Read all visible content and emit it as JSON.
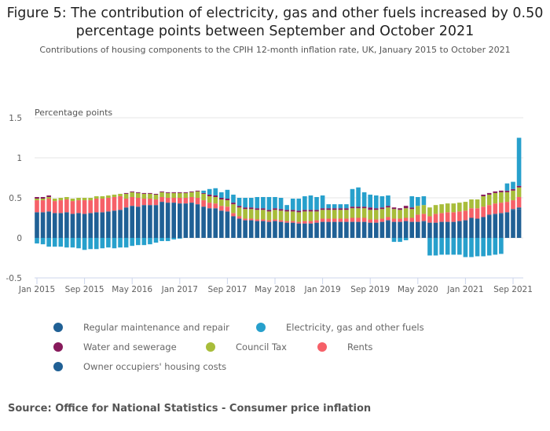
{
  "title": "Figure 5: The contribution of electricity, gas and other fuels increased by 0.50 percentage points between September and October 2021",
  "subtitle": "Contributions of housing components to the CPIH 12-month inflation rate, UK, January 2015 to October 2021",
  "source": "Source: Office for National Statistics - Consumer price inflation",
  "chart_data": {
    "type": "bar",
    "stacked": true,
    "title": "Figure 5: The contribution of electricity, gas and other fuels increased by 0.50 percentage points between September and October 2021",
    "subtitle": "Contributions of housing components to the CPIH 12-month inflation rate, UK, January 2015 to October 2021",
    "xlabel": "",
    "ylabel": "Percentage points",
    "ylim": [
      -0.5,
      1.5
    ],
    "yticks": [
      -0.5,
      0,
      0.5,
      1,
      1.5
    ],
    "ytick_labels": [
      "-0.5",
      "0",
      "0.5",
      "1",
      "1.5"
    ],
    "xtick_labels": [
      "Jan 2015",
      "Sep 2015",
      "May 2016",
      "Jan 2017",
      "Sep 2017",
      "May 2018",
      "Jan 2019",
      "Sep 2019",
      "May 2020",
      "Jan 2021",
      "Sep 2021"
    ],
    "xtick_indices": [
      0,
      8,
      16,
      24,
      32,
      40,
      48,
      56,
      64,
      72,
      80
    ],
    "grid": true,
    "legend_position": "bottom",
    "categories": [
      "Jan 2015",
      "Feb 2015",
      "Mar 2015",
      "Apr 2015",
      "May 2015",
      "Jun 2015",
      "Jul 2015",
      "Aug 2015",
      "Sep 2015",
      "Oct 2015",
      "Nov 2015",
      "Dec 2015",
      "Jan 2016",
      "Feb 2016",
      "Mar 2016",
      "Apr 2016",
      "May 2016",
      "Jun 2016",
      "Jul 2016",
      "Aug 2016",
      "Sep 2016",
      "Oct 2016",
      "Nov 2016",
      "Dec 2016",
      "Jan 2017",
      "Feb 2017",
      "Mar 2017",
      "Apr 2017",
      "May 2017",
      "Jun 2017",
      "Jul 2017",
      "Aug 2017",
      "Sep 2017",
      "Oct 2017",
      "Nov 2017",
      "Dec 2017",
      "Jan 2018",
      "Feb 2018",
      "Mar 2018",
      "Apr 2018",
      "May 2018",
      "Jun 2018",
      "Jul 2018",
      "Aug 2018",
      "Sep 2018",
      "Oct 2018",
      "Nov 2018",
      "Dec 2018",
      "Jan 2019",
      "Feb 2019",
      "Mar 2019",
      "Apr 2019",
      "May 2019",
      "Jun 2019",
      "Jul 2019",
      "Aug 2019",
      "Sep 2019",
      "Oct 2019",
      "Nov 2019",
      "Dec 2019",
      "Jan 2020",
      "Feb 2020",
      "Mar 2020",
      "Apr 2020",
      "May 2020",
      "Jun 2020",
      "Jul 2020",
      "Aug 2020",
      "Sep 2020",
      "Oct 2020",
      "Nov 2020",
      "Dec 2020",
      "Jan 2021",
      "Feb 2021",
      "Mar 2021",
      "Apr 2021",
      "May 2021",
      "Jun 2021",
      "Jul 2021",
      "Aug 2021",
      "Sep 2021",
      "Oct 2021"
    ],
    "series": [
      {
        "name": "Owner occupiers' housing costs",
        "color": "#206095",
        "values": [
          0.32,
          0.32,
          0.33,
          0.31,
          0.31,
          0.32,
          0.3,
          0.31,
          0.3,
          0.31,
          0.32,
          0.32,
          0.33,
          0.34,
          0.35,
          0.38,
          0.4,
          0.39,
          0.41,
          0.41,
          0.41,
          0.45,
          0.44,
          0.44,
          0.43,
          0.43,
          0.44,
          0.42,
          0.39,
          0.37,
          0.37,
          0.34,
          0.33,
          0.27,
          0.24,
          0.22,
          0.22,
          0.21,
          0.21,
          0.2,
          0.21,
          0.2,
          0.19,
          0.19,
          0.18,
          0.18,
          0.18,
          0.19,
          0.2,
          0.2,
          0.2,
          0.2,
          0.2,
          0.2,
          0.2,
          0.2,
          0.19,
          0.19,
          0.2,
          0.21,
          0.2,
          0.2,
          0.21,
          0.2,
          0.2,
          0.2,
          0.19,
          0.19,
          0.2,
          0.2,
          0.2,
          0.21,
          0.22,
          0.25,
          0.24,
          0.26,
          0.28,
          0.29,
          0.3,
          0.32,
          0.35,
          0.36
        ]
      },
      {
        "name": "Regular maintenance and repair",
        "color": "#1f5f94",
        "values": [
          0.0,
          0.0,
          0.0,
          0.0,
          0.0,
          0.0,
          0.0,
          0.0,
          0.0,
          0.0,
          0.0,
          0.0,
          0.0,
          0.0,
          0.0,
          0.0,
          0.0,
          0.0,
          0.0,
          0.0,
          0.0,
          0.0,
          0.0,
          0.0,
          0.0,
          0.0,
          0.0,
          0.0,
          0.0,
          0.0,
          0.0,
          0.0,
          0.0,
          0.0,
          0.0,
          0.0,
          0.0,
          0.0,
          0.0,
          0.0,
          0.0,
          0.0,
          0.0,
          0.0,
          0.0,
          0.0,
          0.0,
          0.0,
          0.0,
          0.0,
          0.0,
          0.0,
          0.0,
          0.0,
          0.0,
          0.0,
          0.0,
          0.0,
          0.0,
          0.01,
          0.0,
          0.0,
          0.0,
          0.0,
          0.0,
          0.01,
          0.0,
          0.0,
          0.0,
          0.0,
          0.0,
          0.0,
          0.0,
          0.0,
          0.0,
          0.0,
          0.01,
          0.01,
          0.01,
          0.0,
          0.01,
          0.02
        ]
      },
      {
        "name": "Rents",
        "color": "#f66068",
        "values": [
          0.15,
          0.15,
          0.16,
          0.15,
          0.16,
          0.16,
          0.16,
          0.16,
          0.17,
          0.16,
          0.17,
          0.17,
          0.17,
          0.17,
          0.17,
          0.11,
          0.11,
          0.11,
          0.08,
          0.08,
          0.07,
          0.06,
          0.06,
          0.06,
          0.07,
          0.07,
          0.07,
          0.08,
          0.08,
          0.07,
          0.06,
          0.06,
          0.06,
          0.04,
          0.03,
          0.02,
          0.02,
          0.02,
          0.02,
          0.02,
          0.02,
          0.02,
          0.02,
          0.02,
          0.02,
          0.03,
          0.03,
          0.03,
          0.04,
          0.04,
          0.04,
          0.04,
          0.04,
          0.05,
          0.05,
          0.05,
          0.04,
          0.04,
          0.04,
          0.04,
          0.04,
          0.04,
          0.04,
          0.05,
          0.09,
          0.09,
          0.08,
          0.11,
          0.11,
          0.12,
          0.12,
          0.12,
          0.12,
          0.12,
          0.13,
          0.13,
          0.12,
          0.13,
          0.13,
          0.13,
          0.11,
          0.13
        ]
      },
      {
        "name": "Council Tax",
        "color": "#a8bd3a",
        "values": [
          0.02,
          0.02,
          0.02,
          0.03,
          0.03,
          0.03,
          0.03,
          0.03,
          0.03,
          0.03,
          0.03,
          0.03,
          0.03,
          0.03,
          0.03,
          0.06,
          0.06,
          0.06,
          0.06,
          0.06,
          0.06,
          0.06,
          0.06,
          0.06,
          0.06,
          0.06,
          0.06,
          0.08,
          0.08,
          0.08,
          0.08,
          0.08,
          0.08,
          0.11,
          0.11,
          0.12,
          0.12,
          0.12,
          0.12,
          0.11,
          0.12,
          0.12,
          0.12,
          0.12,
          0.12,
          0.12,
          0.12,
          0.11,
          0.11,
          0.11,
          0.11,
          0.11,
          0.11,
          0.12,
          0.12,
          0.12,
          0.12,
          0.12,
          0.12,
          0.12,
          0.12,
          0.11,
          0.12,
          0.11,
          0.11,
          0.11,
          0.11,
          0.11,
          0.11,
          0.11,
          0.11,
          0.11,
          0.11,
          0.11,
          0.11,
          0.13,
          0.13,
          0.13,
          0.13,
          0.12,
          0.12,
          0.12
        ]
      },
      {
        "name": "Water and sewerage",
        "color": "#871a5b",
        "values": [
          0.02,
          0.02,
          0.02,
          0.0,
          0.0,
          0.0,
          0.0,
          0.0,
          0.0,
          0.0,
          0.0,
          0.0,
          0.0,
          0.0,
          0.0,
          0.01,
          0.01,
          0.01,
          0.01,
          0.01,
          0.01,
          0.01,
          0.01,
          0.01,
          0.01,
          0.01,
          0.01,
          0.01,
          0.01,
          0.02,
          0.02,
          0.02,
          0.02,
          0.02,
          0.02,
          0.02,
          0.02,
          0.02,
          0.02,
          0.02,
          0.02,
          0.02,
          0.02,
          0.02,
          0.02,
          0.02,
          0.02,
          0.02,
          0.02,
          0.02,
          0.02,
          0.02,
          0.02,
          0.02,
          0.02,
          0.02,
          0.03,
          0.02,
          0.02,
          0.02,
          0.02,
          0.02,
          0.03,
          0.02,
          0.0,
          0.0,
          0.0,
          0.0,
          0.0,
          0.0,
          0.0,
          0.0,
          0.0,
          0.0,
          0.0,
          0.02,
          0.02,
          0.02,
          0.02,
          0.02,
          0.02,
          0.02
        ]
      },
      {
        "name": "Electricity, gas and other fuels",
        "color": "#27a0cc",
        "values": [
          -0.07,
          -0.08,
          -0.11,
          -0.11,
          -0.11,
          -0.12,
          -0.12,
          -0.13,
          -0.15,
          -0.14,
          -0.14,
          -0.13,
          -0.12,
          -0.13,
          -0.12,
          -0.12,
          -0.1,
          -0.09,
          -0.09,
          -0.08,
          -0.06,
          -0.04,
          -0.04,
          -0.02,
          -0.01,
          0.0,
          0.0,
          0.0,
          0.03,
          0.07,
          0.09,
          0.07,
          0.11,
          0.1,
          0.1,
          0.12,
          0.12,
          0.14,
          0.14,
          0.16,
          0.14,
          0.14,
          0.06,
          0.14,
          0.15,
          0.17,
          0.18,
          0.16,
          0.16,
          0.05,
          0.05,
          0.05,
          0.05,
          0.22,
          0.24,
          0.18,
          0.16,
          0.16,
          0.14,
          0.13,
          -0.05,
          -0.05,
          -0.03,
          0.14,
          0.11,
          0.11,
          -0.22,
          -0.22,
          -0.21,
          -0.21,
          -0.21,
          -0.21,
          -0.24,
          -0.24,
          -0.23,
          -0.23,
          -0.22,
          -0.21,
          -0.2,
          0.09,
          0.09,
          0.6
        ]
      }
    ]
  },
  "legend": [
    {
      "label": "Regular maintenance and repair",
      "color": "#206095"
    },
    {
      "label": "Electricity, gas and other fuels",
      "color": "#27a0cc"
    },
    {
      "label": "Water and sewerage",
      "color": "#871a5b"
    },
    {
      "label": "Council Tax",
      "color": "#a8bd3a"
    },
    {
      "label": "Rents",
      "color": "#f66068"
    },
    {
      "label": "Owner occupiers' housing costs",
      "color": "#206095"
    }
  ]
}
